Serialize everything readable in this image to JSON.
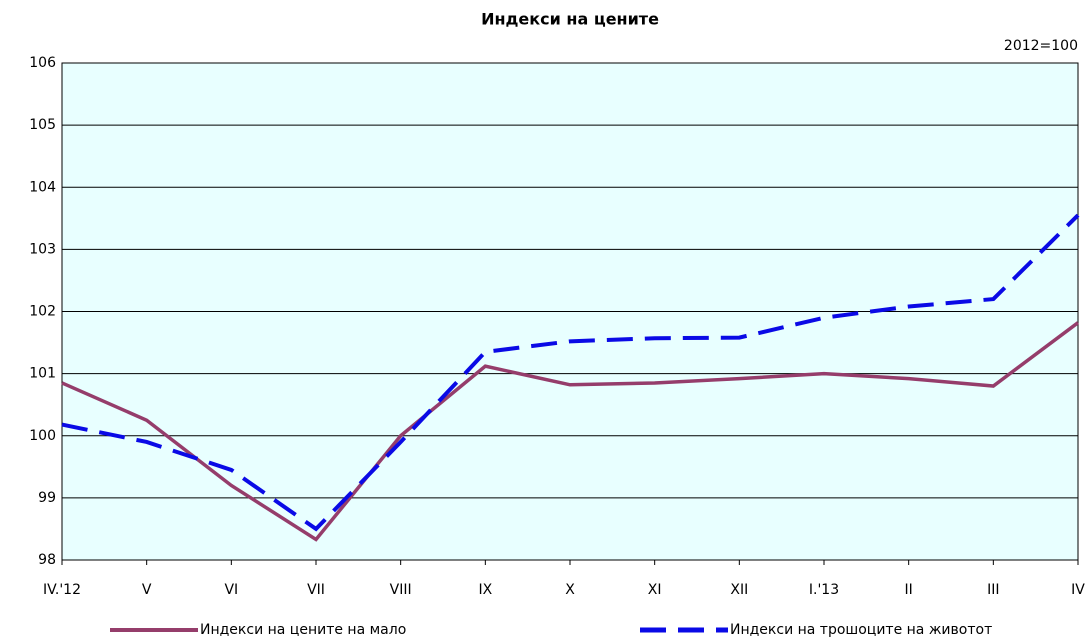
{
  "chart_data": {
    "type": "line",
    "title": "Индекси на цените",
    "annotation": "2012=100",
    "categories": [
      "IV.'12",
      "V",
      "VI",
      "VII",
      "VIII",
      "IX",
      "X",
      "XI",
      "XII",
      "I.'13",
      "II",
      "III",
      "IV"
    ],
    "series": [
      {
        "name": "Индекси на цените на мало",
        "color": "#953d6b",
        "dash": false,
        "values": [
          100.85,
          100.25,
          99.2,
          98.33,
          100.0,
          101.12,
          100.82,
          100.85,
          100.92,
          101.0,
          100.92,
          100.8,
          101.82
        ]
      },
      {
        "name": "Индекси на трошоците на животот",
        "color": "#0a0ae6",
        "dash": true,
        "values": [
          100.18,
          99.9,
          99.45,
          98.5,
          99.9,
          101.35,
          101.52,
          101.57,
          101.58,
          101.9,
          102.08,
          102.2,
          103.55
        ]
      }
    ],
    "ylim": [
      98,
      106
    ],
    "yticks": [
      98,
      99,
      100,
      101,
      102,
      103,
      104,
      105,
      106
    ],
    "grid": true,
    "legend": "bottom"
  }
}
